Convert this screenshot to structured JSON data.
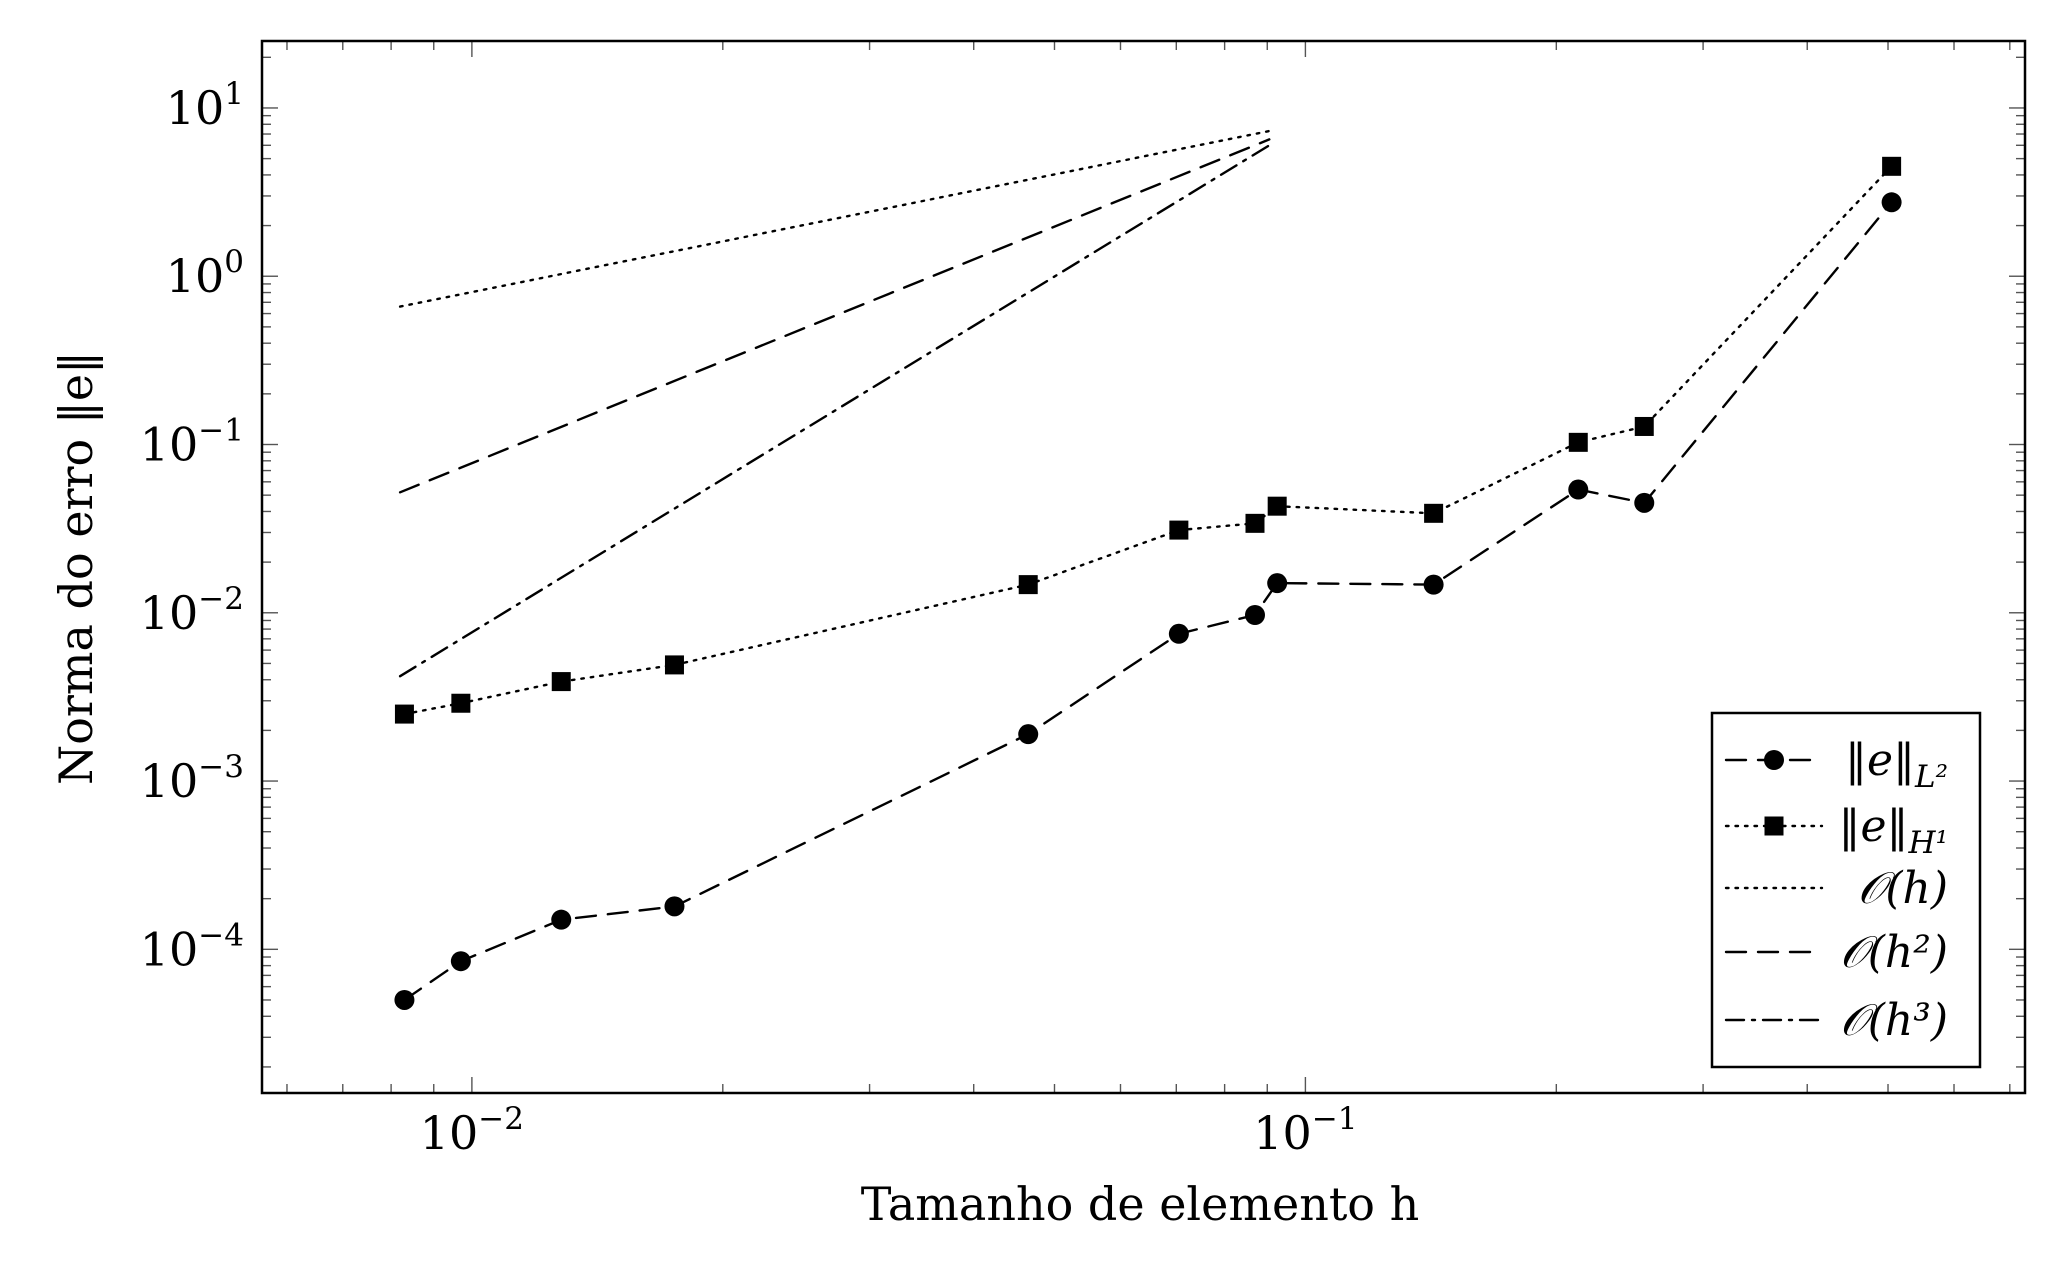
{
  "chart_data": {
    "type": "line",
    "xscale": "log",
    "yscale": "log",
    "xlim": [
      0.0056,
      0.73
    ],
    "ylim": [
      1.4e-05,
      25
    ],
    "xlabel": "Tamanho de elemento h",
    "ylabel": "Norma do erro ‖e‖",
    "x_ticks": [
      {
        "value": 0.01,
        "base": "10",
        "exp": "−2"
      },
      {
        "value": 0.1,
        "base": "10",
        "exp": "−1"
      }
    ],
    "y_ticks": [
      {
        "value": 0.0001,
        "base": "10",
        "exp": "−4"
      },
      {
        "value": 0.001,
        "base": "10",
        "exp": "−3"
      },
      {
        "value": 0.01,
        "base": "10",
        "exp": "−2"
      },
      {
        "value": 0.1,
        "base": "10",
        "exp": "−1"
      },
      {
        "value": 1,
        "base": "10",
        "exp": "0"
      },
      {
        "value": 10,
        "base": "10",
        "exp": "1"
      }
    ],
    "grid": false,
    "legend_position": "bottom-right",
    "series": [
      {
        "name": "‖e‖L²",
        "legend_main": "‖e‖",
        "legend_sub": "L²",
        "style": "dashed",
        "marker": "circle",
        "x": [
          0.0083,
          0.0097,
          0.0128,
          0.0175,
          0.0465,
          0.0705,
          0.087,
          0.0925,
          0.1425,
          0.2125,
          0.255,
          0.505
        ],
        "y": [
          5e-05,
          8.5e-05,
          0.00015,
          0.00018,
          0.0019,
          0.0075,
          0.0097,
          0.015,
          0.0147,
          0.054,
          0.045,
          2.75
        ]
      },
      {
        "name": "‖e‖H¹",
        "legend_main": "‖e‖",
        "legend_sub": "H¹",
        "style": "dotted",
        "marker": "square",
        "x": [
          0.0083,
          0.0097,
          0.0128,
          0.0175,
          0.0465,
          0.0705,
          0.087,
          0.0925,
          0.1425,
          0.2125,
          0.255,
          0.505
        ],
        "y": [
          0.0025,
          0.0029,
          0.0039,
          0.0049,
          0.0147,
          0.031,
          0.034,
          0.043,
          0.039,
          0.103,
          0.128,
          4.5
        ]
      },
      {
        "name": "O(h)",
        "legend_main": "𝒪(h)",
        "style": "dotted",
        "marker": "none",
        "x": [
          0.0082,
          0.0905
        ],
        "y": [
          0.66,
          7.3
        ]
      },
      {
        "name": "O(h²)",
        "legend_main": "𝒪(h²)",
        "style": "dashed",
        "marker": "none",
        "x": [
          0.0082,
          0.0905
        ],
        "y": [
          0.052,
          6.5
        ]
      },
      {
        "name": "O(h³)",
        "legend_main": "𝒪(h³)",
        "style": "dashdot",
        "marker": "none",
        "x": [
          0.0082,
          0.0905
        ],
        "y": [
          0.0042,
          6.0
        ]
      }
    ]
  }
}
